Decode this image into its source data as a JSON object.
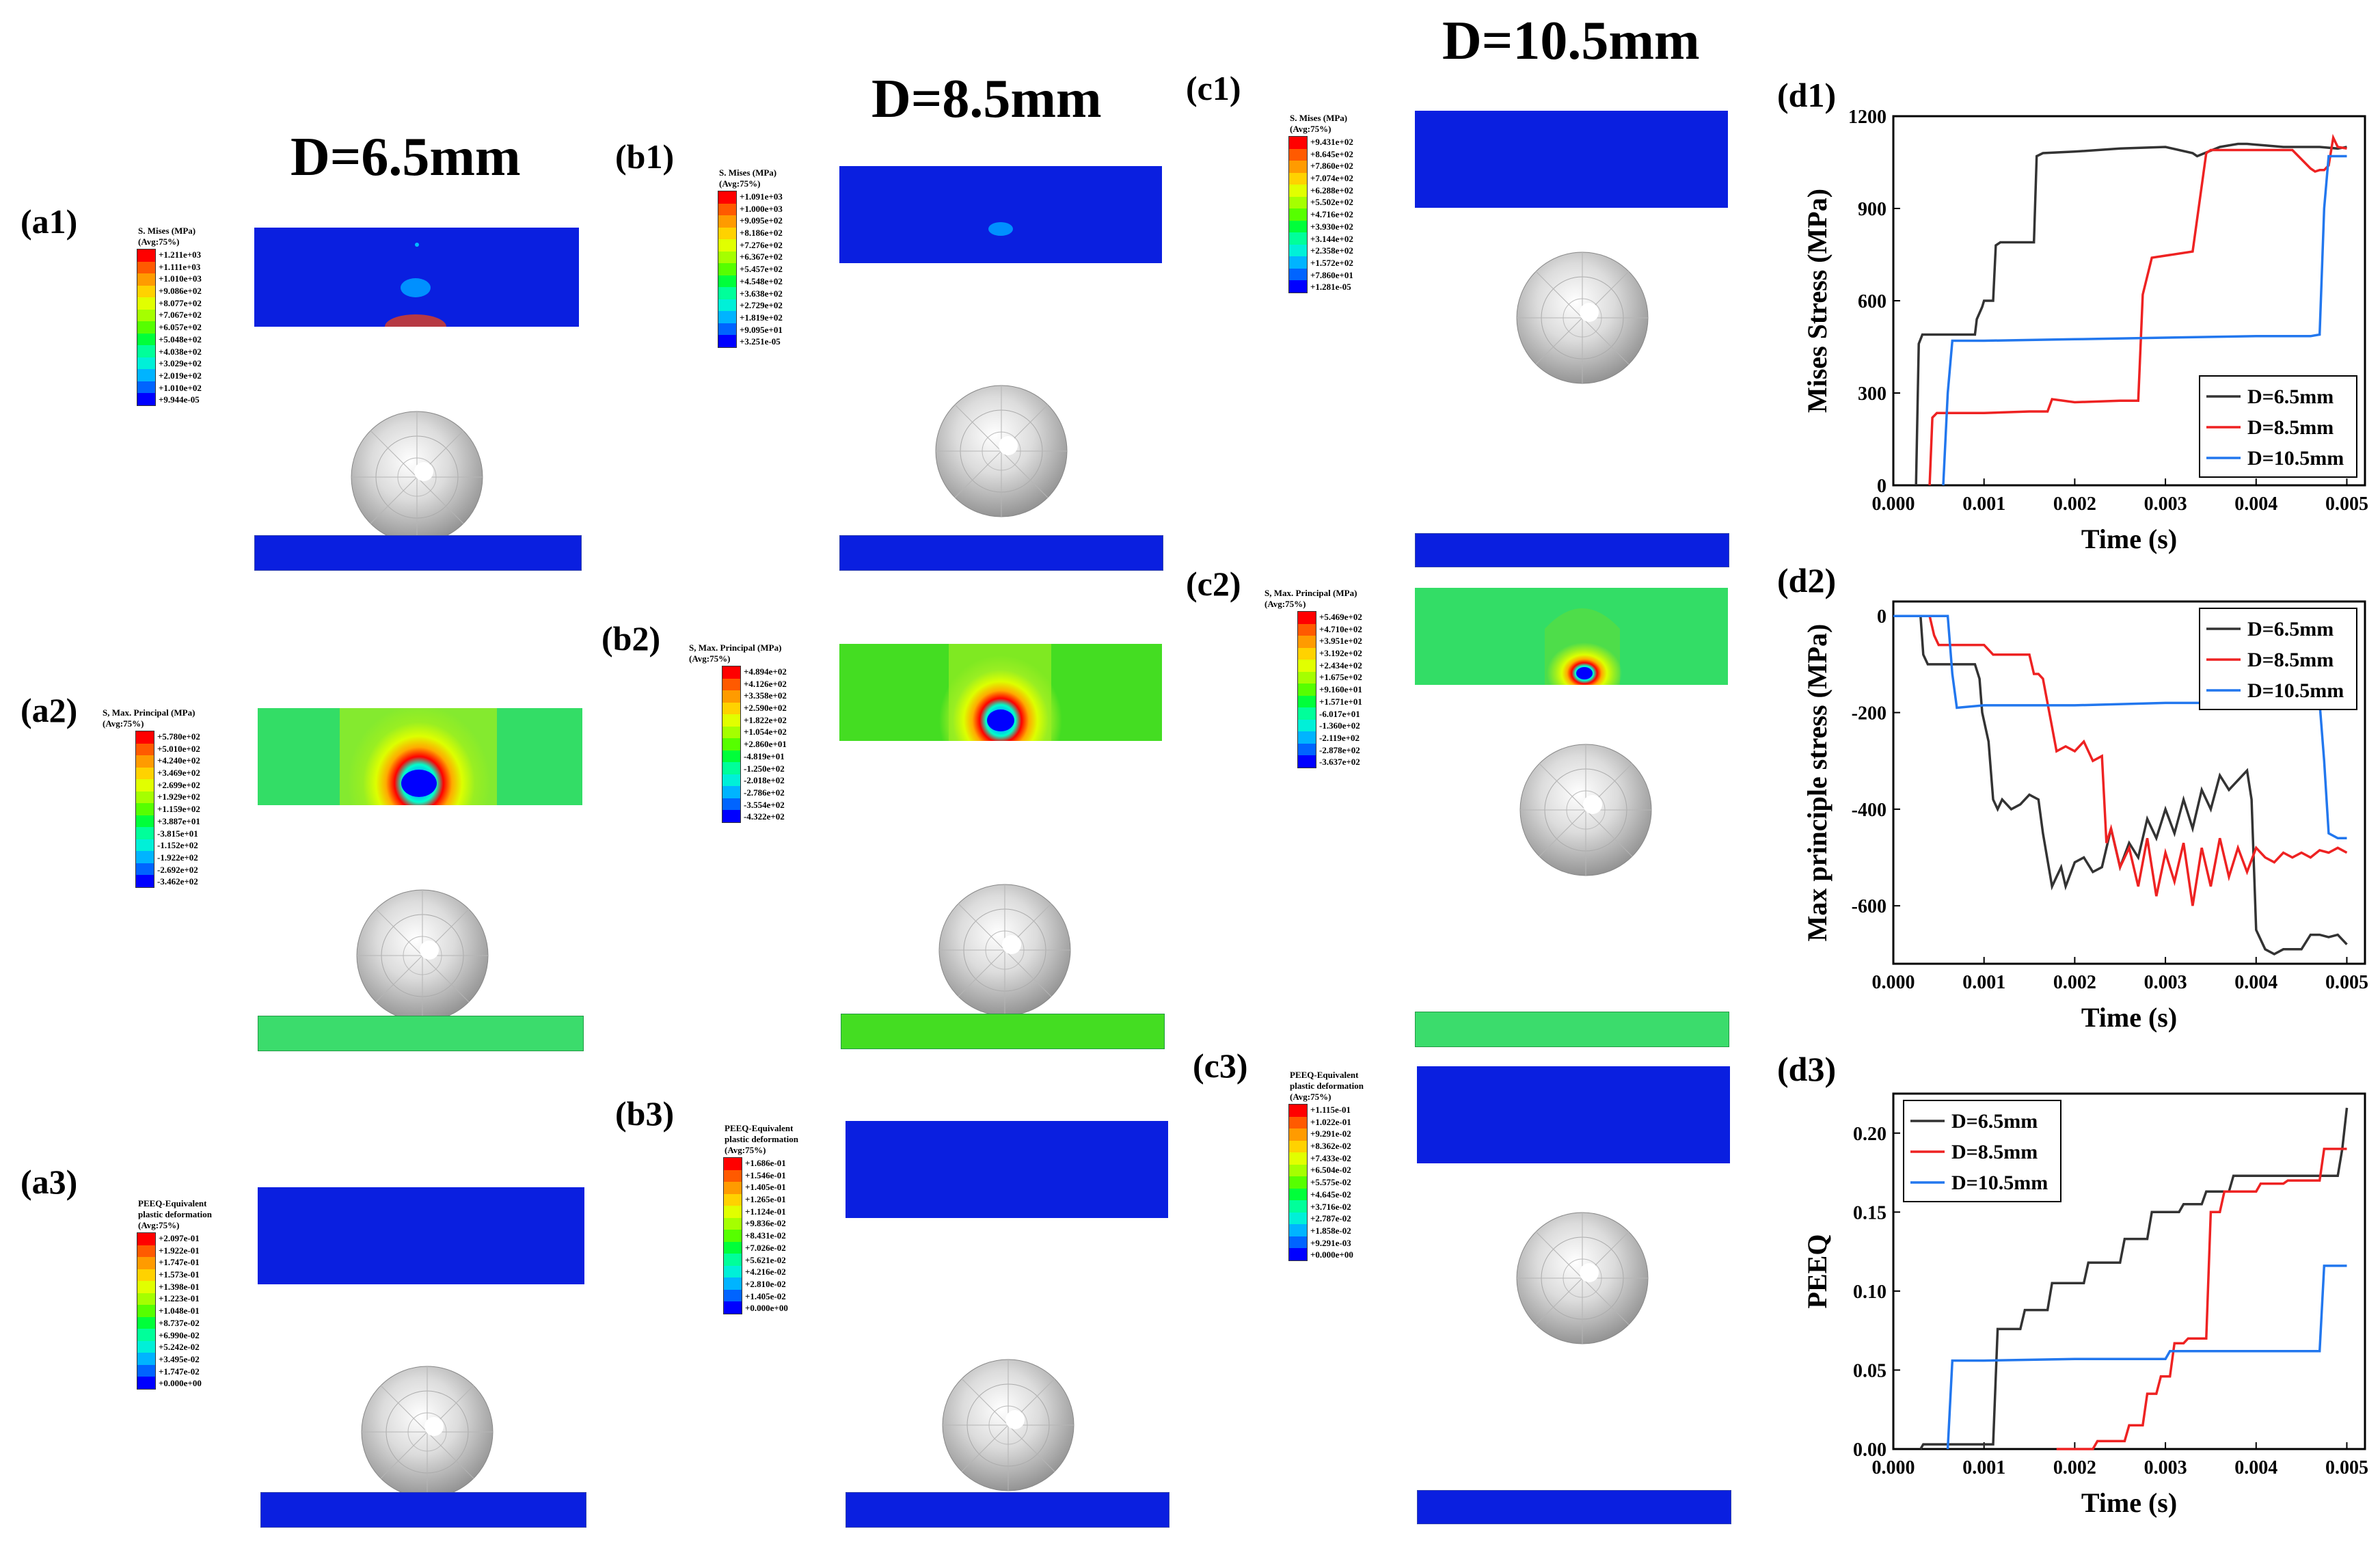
{
  "columns": {
    "a": {
      "title": "D=6.5mm"
    },
    "b": {
      "title": "D=8.5mm"
    },
    "c": {
      "title": "D=10.5mm"
    }
  },
  "panels": {
    "a1": {
      "label": "(a1)",
      "legend_title": [
        "S. Mises (MPa)",
        "(Avg:75%)"
      ],
      "values": [
        "+1.211e+03",
        "+1.111e+03",
        "+1.010e+03",
        "+9.086e+02",
        "+8.077e+02",
        "+7.067e+02",
        "+6.057e+02",
        "+5.048e+02",
        "+4.038e+02",
        "+3.029e+02",
        "+2.019e+02",
        "+1.010e+02",
        "+9.944e-05"
      ]
    },
    "a2": {
      "label": "(a2)",
      "legend_title": [
        "S,  Max. Principal (MPa)",
        "(Avg:75%)"
      ],
      "values": [
        "+5.780e+02",
        "+5.010e+02",
        "+4.240e+02",
        "+3.469e+02",
        "+2.699e+02",
        "+1.929e+02",
        "+1.159e+02",
        "+3.887e+01",
        "-3.815e+01",
        "-1.152e+02",
        "-1.922e+02",
        "-2.692e+02",
        "-3.462e+02"
      ]
    },
    "a3": {
      "label": "(a3)",
      "legend_title": [
        "PEEQ-Equivalent",
        "plastic deformation",
        "(Avg:75%)"
      ],
      "values": [
        "+2.097e-01",
        "+1.922e-01",
        "+1.747e-01",
        "+1.573e-01",
        "+1.398e-01",
        "+1.223e-01",
        "+1.048e-01",
        "+8.737e-02",
        "+6.990e-02",
        "+5.242e-02",
        "+3.495e-02",
        "+1.747e-02",
        "+0.000e+00"
      ]
    },
    "b1": {
      "label": "(b1)",
      "legend_title": [
        "S. Mises (MPa)",
        "(Avg:75%)"
      ],
      "values": [
        "+1.091e+03",
        "+1.000e+03",
        "+9.095e+02",
        "+8.186e+02",
        "+7.276e+02",
        "+6.367e+02",
        "+5.457e+02",
        "+4.548e+02",
        "+3.638e+02",
        "+2.729e+02",
        "+1.819e+02",
        "+9.095e+01",
        "+3.251e-05"
      ]
    },
    "b2": {
      "label": "(b2)",
      "legend_title": [
        "S,  Max. Principal (MPa)",
        "(Avg:75%)"
      ],
      "values": [
        "+4.894e+02",
        "+4.126e+02",
        "+3.358e+02",
        "+2.590e+02",
        "+1.822e+02",
        "+1.054e+02",
        "+2.860e+01",
        "-4.819e+01",
        "-1.250e+02",
        "-2.018e+02",
        "-2.786e+02",
        "-3.554e+02",
        "-4.322e+02"
      ]
    },
    "b3": {
      "label": "(b3)",
      "legend_title": [
        "PEEQ-Equivalent",
        "plastic deformation",
        "(Avg:75%)"
      ],
      "values": [
        "+1.686e-01",
        "+1.546e-01",
        "+1.405e-01",
        "+1.265e-01",
        "+1.124e-01",
        "+9.836e-02",
        "+8.431e-02",
        "+7.026e-02",
        "+5.621e-02",
        "+4.216e-02",
        "+2.810e-02",
        "+1.405e-02",
        "+0.000e+00"
      ]
    },
    "c1": {
      "label": "(c1)",
      "legend_title": [
        "S. Mises (MPa)",
        "(Avg:75%)"
      ],
      "values": [
        "+9.431e+02",
        "+8.645e+02",
        "+7.860e+02",
        "+7.074e+02",
        "+6.288e+02",
        "+5.502e+02",
        "+4.716e+02",
        "+3.930e+02",
        "+3.144e+02",
        "+2.358e+02",
        "+1.572e+02",
        "+7.860e+01",
        "+1.281e-05"
      ]
    },
    "c2": {
      "label": "(c2)",
      "legend_title": [
        "S,  Max. Principal (MPa)",
        "(Avg:75%)"
      ],
      "values": [
        "+5.469e+02",
        "+4.710e+02",
        "+3.951e+02",
        "+3.192e+02",
        "+2.434e+02",
        "+1.675e+02",
        "+9.160e+01",
        "+1.571e+01",
        "-6.017e+01",
        "-1.360e+02",
        "-2.119e+02",
        "-2.878e+02",
        "-3.637e+02"
      ]
    },
    "c3": {
      "label": "(c3)",
      "legend_title": [
        "PEEQ-Equivalent",
        "plastic deformation",
        "(Avg:75%)"
      ],
      "values": [
        "+1.115e-01",
        "+1.022e-01",
        "+9.291e-02",
        "+8.362e-02",
        "+7.433e-02",
        "+6.504e-02",
        "+5.575e-02",
        "+4.645e-02",
        "+3.716e-02",
        "+2.787e-02",
        "+1.858e-02",
        "+9.291e-03",
        "+0.000e+00"
      ]
    }
  },
  "legend_colors": [
    "#ff0000",
    "#ff5a00",
    "#ff9b00",
    "#ffd200",
    "#e1ff00",
    "#a5ff00",
    "#56ff00",
    "#00ff3a",
    "#00ff9a",
    "#00f0d8",
    "#00b4ff",
    "#0064ff",
    "#0000ff"
  ],
  "colors": {
    "mises_bg": "#0a1fe0",
    "principal_bg": "#33dd66",
    "plate_principal_a": "#3bdc6c",
    "plate_principal_b": "#44dd22",
    "series_black": "#333333",
    "series_red": "#ee2222",
    "series_blue": "#2277ee"
  },
  "chart_data": [
    {
      "id": "d1",
      "label": "(d1)",
      "type": "line",
      "xlabel": "Time (s)",
      "ylabel": "Mises Stress (MPa)",
      "xlim": [
        0,
        0.0052
      ],
      "ylim": [
        0,
        1200
      ],
      "xticks": [
        0.0,
        0.001,
        0.002,
        0.003,
        0.004,
        0.005
      ],
      "xtick_labels": [
        "0.000",
        "0.001",
        "0.002",
        "0.003",
        "0.004",
        "0.005"
      ],
      "yticks": [
        0,
        300,
        600,
        900,
        1200
      ],
      "ytick_labels": [
        "0",
        "300",
        "600",
        "900",
        "1200"
      ],
      "legend_position": "bottom-right",
      "series": [
        {
          "name": "D=6.5mm",
          "color": "#333333",
          "x": [
            0.00025,
            0.00028,
            0.00032,
            0.00035,
            0.0009,
            0.00092,
            0.00098,
            0.001,
            0.0011,
            0.00113,
            0.00118,
            0.00122,
            0.00155,
            0.00158,
            0.00165,
            0.002,
            0.0025,
            0.003,
            0.0033,
            0.00335,
            0.0036,
            0.0038,
            0.0039,
            0.0041,
            0.0043,
            0.0045,
            0.0047,
            0.0049,
            0.005
          ],
          "y": [
            0,
            460,
            490,
            490,
            490,
            540,
            580,
            600,
            600,
            780,
            790,
            790,
            790,
            1070,
            1080,
            1085,
            1095,
            1100,
            1080,
            1070,
            1100,
            1110,
            1110,
            1105,
            1100,
            1100,
            1100,
            1095,
            1100
          ]
        },
        {
          "name": "D=8.5mm",
          "color": "#ee2222",
          "x": [
            0.0004,
            0.00043,
            0.00048,
            0.001,
            0.0015,
            0.0017,
            0.00175,
            0.002,
            0.0025,
            0.0027,
            0.00275,
            0.00285,
            0.0033,
            0.00345,
            0.0035,
            0.004,
            0.0042,
            0.0044,
            0.0046,
            0.00465,
            0.0047,
            0.00475,
            0.0048,
            0.00485,
            0.0049,
            0.005
          ],
          "y": [
            0,
            220,
            235,
            235,
            240,
            240,
            280,
            270,
            275,
            275,
            620,
            740,
            760,
            1080,
            1090,
            1090,
            1090,
            1090,
            1030,
            1020,
            1025,
            1025,
            1040,
            1130,
            1100,
            1095
          ]
        },
        {
          "name": "D=10.5mm",
          "color": "#2277ee",
          "x": [
            0.00055,
            0.0006,
            0.00065,
            0.001,
            0.002,
            0.003,
            0.004,
            0.0046,
            0.0047,
            0.00475,
            0.0048,
            0.005
          ],
          "y": [
            0,
            300,
            470,
            470,
            475,
            480,
            485,
            485,
            490,
            900,
            1070,
            1070
          ]
        }
      ]
    },
    {
      "id": "d2",
      "label": "(d2)",
      "type": "line",
      "xlabel": "Time (s)",
      "ylabel": "Max principle stress (MPa)",
      "xlim": [
        0,
        0.0052
      ],
      "ylim": [
        -720,
        30
      ],
      "xticks": [
        0.0,
        0.001,
        0.002,
        0.003,
        0.004,
        0.005
      ],
      "xtick_labels": [
        "0.000",
        "0.001",
        "0.002",
        "0.003",
        "0.004",
        "0.005"
      ],
      "yticks": [
        -600,
        -400,
        -200,
        0
      ],
      "ytick_labels": [
        "-600",
        "-400",
        "-200",
        "0"
      ],
      "legend_position": "top-right",
      "series": [
        {
          "name": "D=6.5mm",
          "color": "#333333",
          "x": [
            0,
            0.0003,
            0.00033,
            0.00038,
            0.0006,
            0.0009,
            0.00095,
            0.00098,
            0.00105,
            0.0011,
            0.00115,
            0.0012,
            0.0013,
            0.0014,
            0.0015,
            0.0016,
            0.00165,
            0.00175,
            0.0018,
            0.00185,
            0.0019,
            0.002,
            0.0021,
            0.0022,
            0.0023,
            0.0024,
            0.0025,
            0.0026,
            0.0027,
            0.0028,
            0.0029,
            0.003,
            0.0031,
            0.0032,
            0.0033,
            0.0034,
            0.0035,
            0.0036,
            0.0037,
            0.0038,
            0.0039,
            0.00395,
            0.004,
            0.0041,
            0.0042,
            0.0043,
            0.0044,
            0.0045,
            0.0046,
            0.0047,
            0.0048,
            0.0049,
            0.005
          ],
          "y": [
            0,
            0,
            -80,
            -100,
            -100,
            -100,
            -130,
            -200,
            -260,
            -380,
            -400,
            -380,
            -400,
            -390,
            -370,
            -380,
            -450,
            -560,
            -540,
            -520,
            -560,
            -510,
            -500,
            -530,
            -520,
            -440,
            -520,
            -470,
            -500,
            -420,
            -460,
            -400,
            -450,
            -380,
            -440,
            -360,
            -400,
            -330,
            -360,
            -340,
            -320,
            -380,
            -650,
            -690,
            -700,
            -690,
            -690,
            -690,
            -660,
            -660,
            -665,
            -660,
            -680
          ]
        },
        {
          "name": "D=8.5mm",
          "color": "#ee2222",
          "x": [
            0,
            0.0004,
            0.00045,
            0.0005,
            0.0009,
            0.001,
            0.0011,
            0.0015,
            0.00155,
            0.0016,
            0.00165,
            0.00175,
            0.0018,
            0.0019,
            0.002,
            0.0021,
            0.0022,
            0.0023,
            0.00235,
            0.0024,
            0.0025,
            0.0026,
            0.0027,
            0.0028,
            0.0029,
            0.003,
            0.0031,
            0.0032,
            0.0033,
            0.0034,
            0.0035,
            0.0036,
            0.0037,
            0.0038,
            0.0039,
            0.004,
            0.0041,
            0.0042,
            0.0043,
            0.0044,
            0.0045,
            0.0046,
            0.0047,
            0.0048,
            0.0049,
            0.005
          ],
          "y": [
            0,
            0,
            -40,
            -60,
            -60,
            -60,
            -80,
            -80,
            -120,
            -120,
            -130,
            -230,
            -280,
            -270,
            -280,
            -260,
            -300,
            -290,
            -470,
            -440,
            -520,
            -480,
            -560,
            -460,
            -580,
            -490,
            -550,
            -470,
            -600,
            -480,
            -560,
            -460,
            -540,
            -480,
            -530,
            -480,
            -500,
            -510,
            -490,
            -500,
            -490,
            -500,
            -485,
            -490,
            -480,
            -490
          ]
        },
        {
          "name": "D=10.5mm",
          "color": "#2277ee",
          "x": [
            0,
            0.0006,
            0.00065,
            0.0007,
            0.001,
            0.002,
            0.003,
            0.004,
            0.0045,
            0.0046,
            0.0047,
            0.00475,
            0.0048,
            0.0049,
            0.005
          ],
          "y": [
            0,
            0,
            -120,
            -190,
            -185,
            -185,
            -180,
            -180,
            -178,
            -178,
            -180,
            -300,
            -450,
            -460,
            -460
          ]
        }
      ]
    },
    {
      "id": "d3",
      "label": "(d3)",
      "type": "line",
      "xlabel": "Time (s)",
      "ylabel": "PEEQ",
      "xlim": [
        0,
        0.0052
      ],
      "ylim": [
        0,
        0.225
      ],
      "xticks": [
        0.0,
        0.001,
        0.002,
        0.003,
        0.004,
        0.005
      ],
      "xtick_labels": [
        "0.000",
        "0.001",
        "0.002",
        "0.003",
        "0.004",
        "0.005"
      ],
      "yticks": [
        0.0,
        0.05,
        0.1,
        0.15,
        0.2
      ],
      "ytick_labels": [
        "0.00",
        "0.05",
        "0.10",
        "0.15",
        "0.20"
      ],
      "legend_position": "top-left",
      "series": [
        {
          "name": "D=6.5mm",
          "color": "#333333",
          "x": [
            0.0003,
            0.00033,
            0.0011,
            0.00115,
            0.0014,
            0.00145,
            0.0017,
            0.00175,
            0.0021,
            0.00215,
            0.0025,
            0.00255,
            0.0028,
            0.00285,
            0.00315,
            0.0032,
            0.0034,
            0.00345,
            0.0037,
            0.00375,
            0.0049,
            0.00495,
            0.005
          ],
          "y": [
            0,
            0.003,
            0.003,
            0.076,
            0.076,
            0.088,
            0.088,
            0.105,
            0.105,
            0.118,
            0.118,
            0.133,
            0.133,
            0.15,
            0.15,
            0.155,
            0.155,
            0.163,
            0.163,
            0.173,
            0.173,
            0.19,
            0.216
          ]
        },
        {
          "name": "D=8.5mm",
          "color": "#ee2222",
          "x": [
            0.0018,
            0.0022,
            0.00225,
            0.00255,
            0.0026,
            0.00275,
            0.0028,
            0.0029,
            0.00295,
            0.00305,
            0.0031,
            0.0032,
            0.00325,
            0.00345,
            0.0035,
            0.0036,
            0.00365,
            0.004,
            0.00405,
            0.0043,
            0.00435,
            0.0047,
            0.00475,
            0.005
          ],
          "y": [
            0,
            0,
            0.005,
            0.005,
            0.015,
            0.015,
            0.035,
            0.035,
            0.046,
            0.046,
            0.067,
            0.067,
            0.07,
            0.07,
            0.15,
            0.15,
            0.163,
            0.163,
            0.168,
            0.168,
            0.17,
            0.17,
            0.19,
            0.19
          ]
        },
        {
          "name": "D=10.5mm",
          "color": "#2277ee",
          "x": [
            0.0006,
            0.00065,
            0.001,
            0.002,
            0.003,
            0.00305,
            0.004,
            0.0047,
            0.00475,
            0.005
          ],
          "y": [
            0,
            0.056,
            0.056,
            0.057,
            0.057,
            0.062,
            0.062,
            0.062,
            0.116,
            0.116
          ]
        }
      ]
    }
  ]
}
